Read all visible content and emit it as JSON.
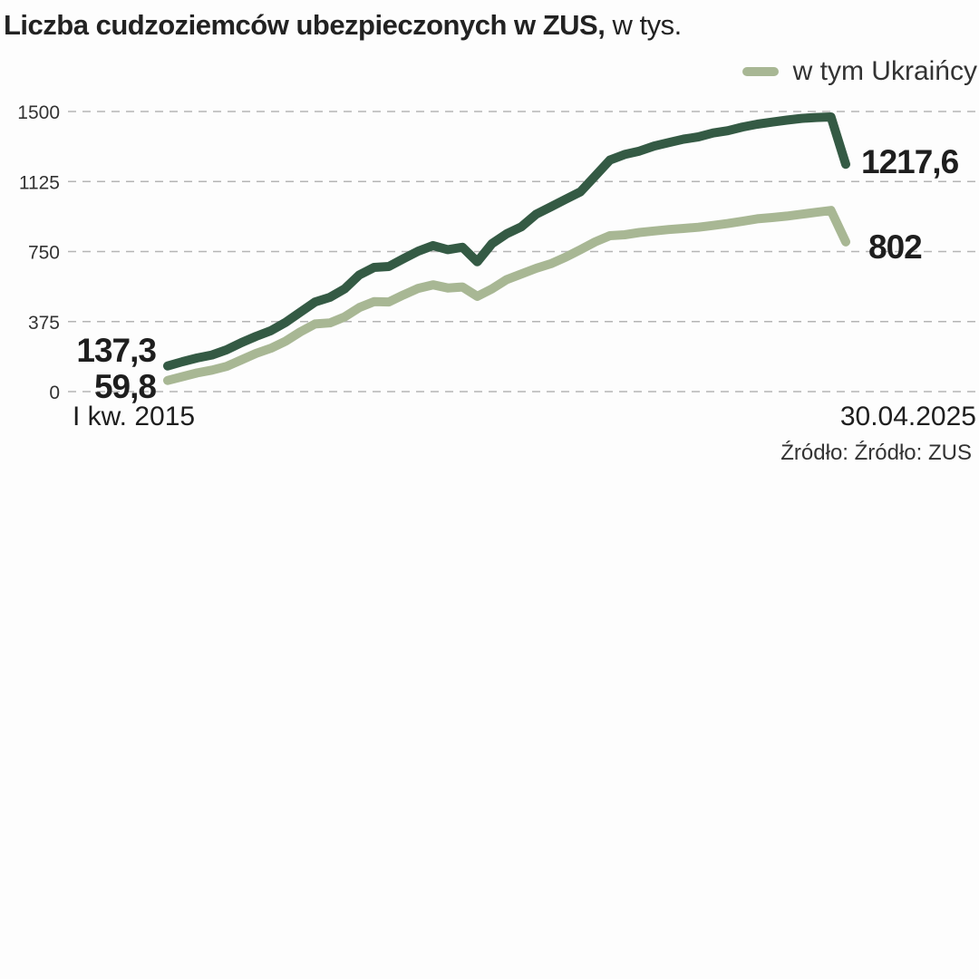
{
  "title": {
    "main": "Liczba cudzoziemców ubezpieczonych w ZUS,",
    "unit": "w tys."
  },
  "legend": {
    "label": "w tym Ukraińcy"
  },
  "source": "Źródło: Źródło: ZUS",
  "colors": {
    "total": "#345a44",
    "ukrainians": "#a8b794",
    "gridline": "#b5b5b5"
  },
  "chart_data": {
    "type": "line",
    "title": "Liczba cudzoziemców ubezpieczonych w ZUS, w tys.",
    "xlabel": "",
    "ylabel": "",
    "ylim": [
      0,
      1500
    ],
    "yticks": [
      0,
      375,
      750,
      1125,
      1500
    ],
    "ytick_labels": [
      "0",
      "375",
      "750",
      "1125",
      "1500"
    ],
    "x_start_label": "I kw. 2015",
    "x_end_label": "30.04.2025",
    "grid": true,
    "legend_position": "top-right",
    "series": [
      {
        "key": "total",
        "values": [
          137.3,
          160,
          180,
          196,
          224,
          262,
          296,
          326,
          371,
          425,
          480,
          505,
          550,
          625,
          665,
          670,
          712,
          752,
          782,
          760,
          773,
          695,
          792,
          845,
          883,
          950,
          990,
          1030,
          1070,
          1155,
          1240,
          1270,
          1288,
          1315,
          1334,
          1352,
          1364,
          1385,
          1397,
          1417,
          1432,
          1443,
          1454,
          1463,
          1468,
          1471,
          1217.6
        ]
      },
      {
        "key": "ukrainians",
        "name": "w tym Ukraińcy",
        "values": [
          59.8,
          80,
          100,
          115,
          135,
          170,
          205,
          232,
          270,
          320,
          362,
          368,
          400,
          450,
          482,
          480,
          518,
          553,
          572,
          555,
          560,
          510,
          550,
          600,
          630,
          660,
          685,
          720,
          760,
          802,
          835,
          840,
          852,
          860,
          868,
          874,
          880,
          890,
          900,
          912,
          925,
          932,
          940,
          950,
          960,
          970,
          802
        ]
      }
    ],
    "start_labels": [
      "137,3",
      "59,8"
    ],
    "end_labels": [
      "1217,6",
      "802"
    ]
  }
}
